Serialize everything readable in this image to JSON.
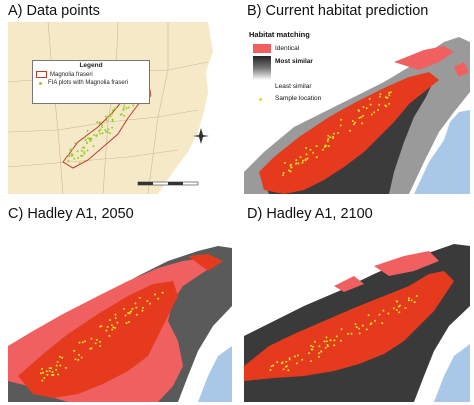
{
  "panels": {
    "a": {
      "title": "A) Data points"
    },
    "b": {
      "title": "B) Current habitat prediction"
    },
    "c": {
      "title": "C) Hadley A1, 2050"
    },
    "d": {
      "title": "D) Hadley A1, 2100"
    }
  },
  "legend_a": {
    "title": "Legend",
    "item1": "Magnolia fraseri",
    "item2": "FIA plots with Magnolia fraseri"
  },
  "legend_b": {
    "title": "Habitat matching",
    "identical": "Identical",
    "most_similar": "Most similar",
    "least_similar": "Least similar",
    "sample": "Sample location"
  },
  "colors": {
    "ocean": "#a9c8e8",
    "land_a": "#f6e9c8",
    "identical": "#f06060",
    "core": "#e53a1e",
    "sample": "#d8e020",
    "range_outline": "#c0392b"
  }
}
